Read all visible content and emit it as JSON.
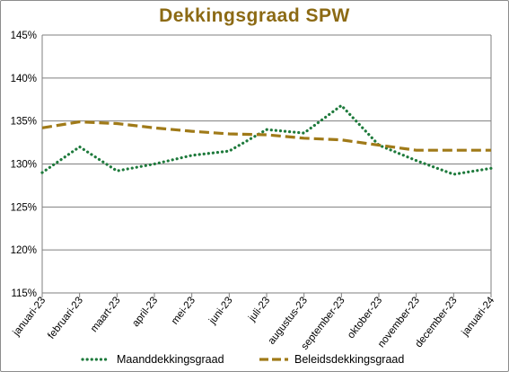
{
  "chart_data": {
    "type": "line",
    "title": "Dekkingsgraad  SPW",
    "xlabel": "",
    "ylabel": "",
    "categories": [
      "januari-23",
      "februari-23",
      "maart-23",
      "april-23",
      "mei-23",
      "juni-23",
      "juli-23",
      "augustus-23",
      "september-23",
      "oktober-23",
      "november-23",
      "december-23",
      "januari-24"
    ],
    "ylim": [
      115,
      145
    ],
    "yticks": [
      115,
      120,
      125,
      130,
      135,
      140,
      145
    ],
    "ytick_labels": [
      "115%",
      "120%",
      "125%",
      "130%",
      "135%",
      "140%",
      "145%"
    ],
    "grid": "horizontal",
    "legend_position": "bottom",
    "series": [
      {
        "name": "Maanddekkingsgraad",
        "style": "dotted",
        "color": "#1e7a3c",
        "values": [
          129.0,
          132.0,
          129.2,
          130.0,
          131.0,
          131.5,
          134.0,
          133.6,
          136.8,
          132.2,
          130.4,
          128.8,
          129.5
        ]
      },
      {
        "name": "Beleidsdekkingsgraad",
        "style": "dashed",
        "color": "#a07a18",
        "values": [
          134.2,
          134.9,
          134.7,
          134.2,
          133.8,
          133.5,
          133.4,
          133.0,
          132.8,
          132.2,
          131.6,
          131.6,
          131.6
        ]
      }
    ]
  },
  "colors": {
    "title": "#8c6a14",
    "grid": "#7f7f7f",
    "axis": "#7f7f7f"
  }
}
